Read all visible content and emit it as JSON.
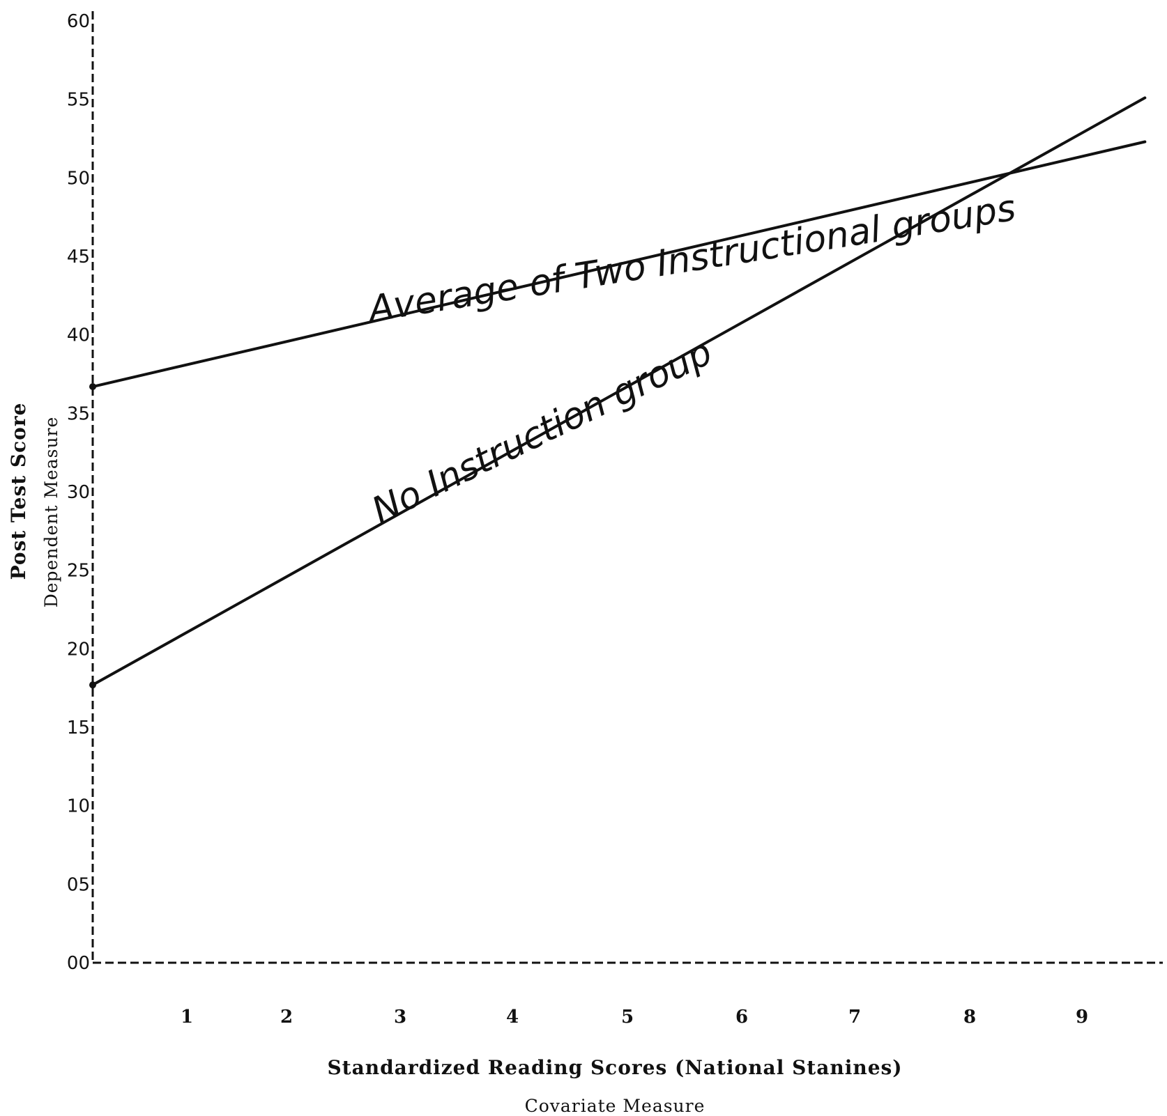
{
  "chart_data": {
    "type": "line",
    "title": "",
    "xlabel": "Standardized Reading Scores (National Stanines)",
    "xlabel_sub": "Covariate Measure",
    "ylabel": "Post Test Score",
    "ylabel_sub": "Dependent Measure",
    "xlim": [
      0,
      9.6
    ],
    "ylim": [
      0,
      60
    ],
    "x_ticks": [
      "1",
      "2",
      "3",
      "4",
      "5",
      "6",
      "7",
      "8",
      "9"
    ],
    "y_ticks": [
      "00",
      "05",
      "10",
      "15",
      "20",
      "25",
      "30",
      "35",
      "40",
      "45",
      "50",
      "55",
      "60"
    ],
    "grid": false,
    "series": [
      {
        "name": "Average of Two Instructional groups",
        "x": [
          0,
          9.6
        ],
        "y": [
          36.7,
          52.3
        ]
      },
      {
        "name": "No Instruction group",
        "x": [
          0,
          9.6
        ],
        "y": [
          17.7,
          55.1
        ]
      }
    ]
  }
}
